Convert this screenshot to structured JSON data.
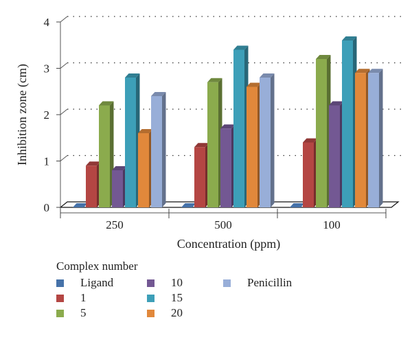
{
  "chart_data": {
    "type": "bar",
    "title": "",
    "xlabel": "Concentration (ppm)",
    "ylabel": "Inhibition zone (cm)",
    "ylim": [
      0,
      4
    ],
    "yticks": [
      "0",
      "1",
      "2",
      "3",
      "4"
    ],
    "categories": [
      "250",
      "500",
      "100"
    ],
    "grid": "dotted horizontal",
    "legend_placement": "bottom",
    "legend_title": "Complex number",
    "series": [
      {
        "name": "Ligand",
        "color": "#4672a9",
        "values": [
          0,
          0,
          0
        ]
      },
      {
        "name": "1",
        "color": "#b44643",
        "values": [
          0.9,
          1.3,
          1.4
        ]
      },
      {
        "name": "5",
        "color": "#8bab4d",
        "values": [
          2.2,
          2.7,
          3.2
        ]
      },
      {
        "name": "10",
        "color": "#735893",
        "values": [
          0.8,
          1.7,
          2.2
        ]
      },
      {
        "name": "15",
        "color": "#3d9fb8",
        "values": [
          2.8,
          3.4,
          3.6
        ]
      },
      {
        "name": "20",
        "color": "#e1883b",
        "values": [
          1.6,
          2.6,
          2.9
        ]
      },
      {
        "name": "Penicillin",
        "color": "#98aed8",
        "values": [
          2.4,
          2.8,
          2.9
        ]
      }
    ]
  }
}
